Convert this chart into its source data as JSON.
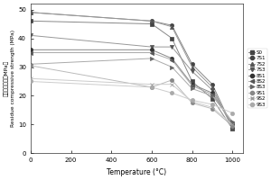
{
  "series": [
    {
      "name": "S0",
      "temps": [
        0,
        600,
        700,
        800,
        900,
        1000
      ],
      "values": [
        46,
        45,
        40,
        25,
        19,
        8.5
      ],
      "marker": "s",
      "mcolor": "#444444",
      "lcolor": "#888888"
    },
    {
      "name": "7S1",
      "temps": [
        0,
        600,
        700,
        800,
        900,
        1000
      ],
      "values": [
        49,
        46,
        44.5,
        31,
        24,
        9
      ],
      "marker": "o",
      "mcolor": "#444444",
      "lcolor": "#888888"
    },
    {
      "name": "7S2",
      "temps": [
        0,
        600,
        700,
        800,
        900,
        1000
      ],
      "values": [
        49,
        46,
        44,
        30,
        23,
        8.5
      ],
      "marker": "^",
      "mcolor": "#555555",
      "lcolor": "#999999"
    },
    {
      "name": "7S3",
      "temps": [
        0,
        600,
        700,
        800,
        900,
        1000
      ],
      "values": [
        41,
        37,
        37,
        28.5,
        22,
        9.5
      ],
      "marker": "v",
      "mcolor": "#555555",
      "lcolor": "#999999"
    },
    {
      "name": "8S1",
      "temps": [
        0,
        600,
        700,
        800,
        900,
        1000
      ],
      "values": [
        36,
        36,
        33,
        24,
        21,
        10
      ],
      "marker": "o",
      "mcolor": "#333333",
      "lcolor": "#888888"
    },
    {
      "name": "8S2",
      "temps": [
        0,
        600,
        700,
        800,
        900,
        1000
      ],
      "values": [
        35,
        35,
        32.5,
        23.5,
        20.5,
        10.5
      ],
      "marker": "<",
      "mcolor": "#555555",
      "lcolor": "#aaaaaa"
    },
    {
      "name": "8S3",
      "temps": [
        0,
        600,
        700,
        800,
        900,
        1000
      ],
      "values": [
        31,
        33,
        30,
        22.5,
        20,
        11
      ],
      "marker": ">",
      "mcolor": "#666666",
      "lcolor": "#aaaaaa"
    },
    {
      "name": "9S1",
      "temps": [
        0,
        600,
        700,
        800,
        900,
        1000
      ],
      "values": [
        30.5,
        23,
        25.5,
        17.5,
        15.5,
        9.5
      ],
      "marker": "o",
      "mcolor": "#888888",
      "lcolor": "#bbbbbb"
    },
    {
      "name": "9S2",
      "temps": [
        0,
        600,
        700,
        800,
        900,
        1000
      ],
      "values": [
        26,
        24,
        24,
        18,
        16,
        10
      ],
      "marker": "x",
      "mcolor": "#999999",
      "lcolor": "#cccccc"
    },
    {
      "name": "9S3",
      "temps": [
        0,
        600,
        700,
        800,
        900,
        1000
      ],
      "values": [
        25,
        23,
        21,
        18.5,
        17,
        14
      ],
      "marker": "o",
      "mcolor": "#aaaaaa",
      "lcolor": "#cccccc"
    }
  ],
  "xlabel": "Temperature (°C)",
  "ylabel_cn": "残余抗压强度（MPa）",
  "ylabel_en": "Residue compressive strength (MPa)",
  "xlim": [
    0,
    1050
  ],
  "ylim": [
    0,
    52
  ],
  "xticks": [
    0,
    200,
    400,
    600,
    800,
    1000
  ],
  "yticks": [
    0,
    10,
    20,
    30,
    40,
    50
  ]
}
